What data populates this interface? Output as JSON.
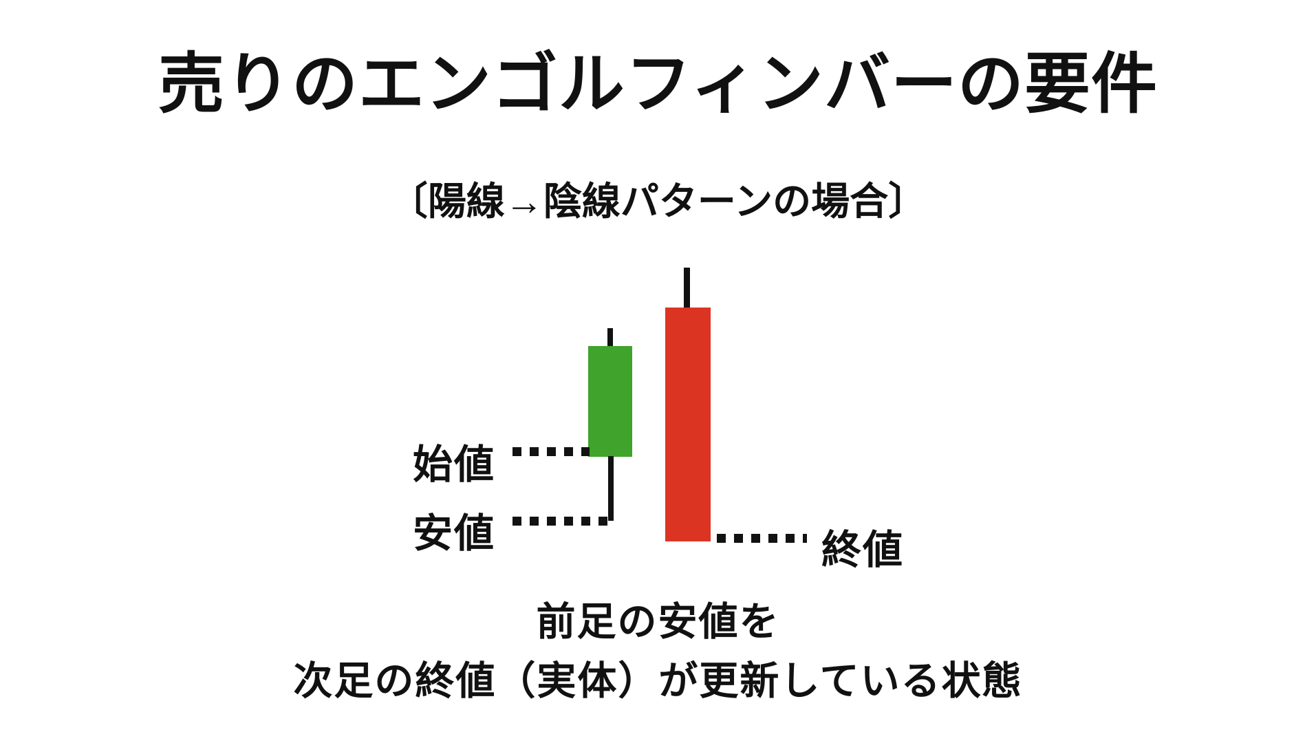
{
  "page": {
    "background": "#ffffff",
    "ink_color": "#111111"
  },
  "title": "売りのエンゴルフィンバーの要件",
  "subtitle": "〔陽線→陰線パターンの場合〕",
  "chart": {
    "colors": {
      "bullish_body": "#3fa32c",
      "bearish_body": "#dc3423",
      "wick": "#111111"
    },
    "labels": {
      "open": "始値",
      "low": "安値",
      "close": "終値"
    }
  },
  "chart_data": {
    "type": "candlestick",
    "units": "relative 0-100, estimated from drawing (no axis shown)",
    "candles": [
      {
        "role": "前足",
        "direction": "bullish",
        "color": "#3fa32c",
        "open": 32,
        "high": 78,
        "low": 8,
        "close": 72
      },
      {
        "role": "次足",
        "direction": "bearish",
        "color": "#dc3423",
        "open": 86,
        "high": 100,
        "low": 1,
        "close": 1
      }
    ],
    "annotations": [
      {
        "text": "始値",
        "points_to": "bottom of previous bullish candle body (open)"
      },
      {
        "text": "安値",
        "points_to": "bottom of previous bullish candle lower wick (low)"
      },
      {
        "text": "終値",
        "points_to": "bottom of next bearish candle body (close)"
      }
    ],
    "legend_position": "none",
    "grid": false
  },
  "caption": {
    "line1": "前足の安値を",
    "line2": "次足の終値（実体）が更新している状態"
  }
}
